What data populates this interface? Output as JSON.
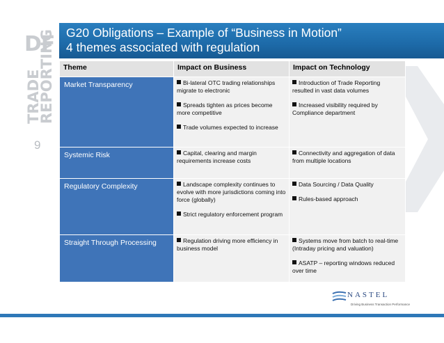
{
  "title": {
    "line1": "G20 Obligations – Example of “Business in Motion”",
    "line2": "4 themes associated with regulation"
  },
  "sidebar": {
    "logo_letters": "DF",
    "vertical_text_1": "TRADE",
    "vertical_text_2": "REPORTING",
    "page_number": "9"
  },
  "table": {
    "headers": [
      "Theme",
      "Impact on Business",
      "Impact on Technology"
    ],
    "rows": [
      {
        "theme": "Market Transparency",
        "business": [
          "Bi-lateral OTC trading relationships migrate to electronic",
          "Spreads tighten as prices become more competitive",
          "Trade volumes expected to increase"
        ],
        "technology": [
          "Introduction of Trade Reporting resulted in vast data volumes",
          "Increased visibility required by Compliance department"
        ]
      },
      {
        "theme": "Systemic Risk",
        "business": [
          "Capital, clearing and margin requirements increase costs"
        ],
        "technology": [
          "Connectivity and aggregation of data from multiple locations"
        ]
      },
      {
        "theme": "Regulatory Complexity",
        "business": [
          "Landscape complexity continues to evolve with more jurisdictions coming into force (globally)",
          "Strict regulatory enforcement program"
        ],
        "technology": [
          "Data Sourcing / Data Quality",
          "Rules-based approach"
        ]
      },
      {
        "theme": "Straight Through Processing",
        "business": [
          "Regulation driving more efficiency in business model"
        ],
        "technology": [
          "Systems move from batch to real-time (Intraday pricing and valuation)",
          "ASATP – reporting windows reduced over time"
        ]
      }
    ]
  },
  "logo": {
    "name": "NASTEL",
    "tagline": "Driving Business Transaction Performance"
  },
  "colors": {
    "header_bar": "#1d6aa8",
    "theme_cell": "#3f74b8",
    "body_cell": "#f1f1f1",
    "header_cell": "#e2e2e2",
    "footer_bar": "#2e78b8"
  }
}
